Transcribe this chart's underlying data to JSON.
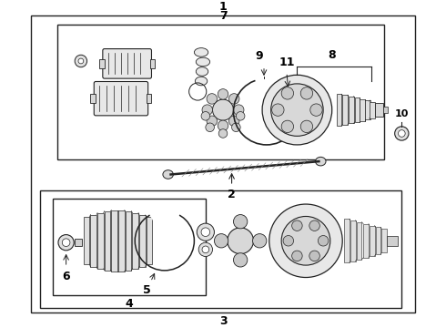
{
  "bg_color": "#ffffff",
  "lc": "#222222",
  "fig_w": 4.9,
  "fig_h": 3.6,
  "dpi": 100
}
